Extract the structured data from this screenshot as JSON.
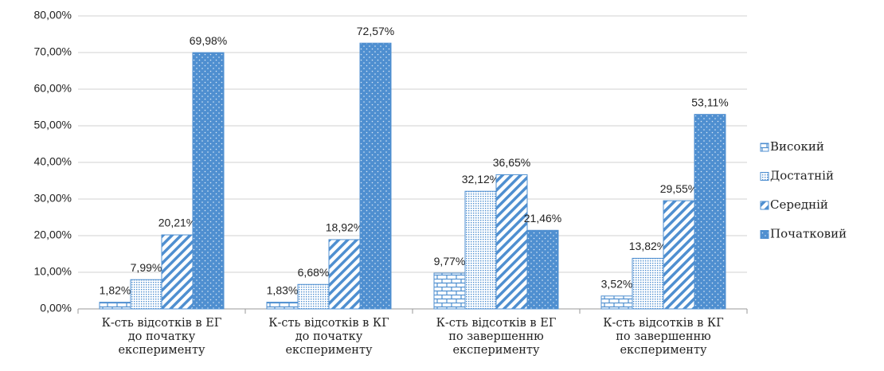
{
  "chart_data": {
    "type": "bar",
    "categories": [
      "К-сть відсотків в ЕГ\nдо початку\nексперименту",
      "К-сть відсотків в КГ\nдо початку\nексперименту",
      "К-сть відсотків в ЕГ\nпо завершенню\nексперименту",
      "К-сть відсотків в КГ\nпо завершенню\nексперименту"
    ],
    "series": [
      {
        "name": "Високий",
        "color": "#4f8fd0",
        "fill_pattern": "bricks",
        "values": [
          1.82,
          1.83,
          9.77,
          3.52
        ],
        "value_labels": [
          "1,82%",
          "1,83%",
          "9,77%",
          "3,52%"
        ]
      },
      {
        "name": "Достатній",
        "color": "#4f8fd0",
        "fill_pattern": "fine-dots",
        "values": [
          7.99,
          6.68,
          32.12,
          13.82
        ],
        "value_labels": [
          "7,99%",
          "6,68%",
          "32,12%",
          "13,82%"
        ]
      },
      {
        "name": "Середній",
        "color": "#4f8fd0",
        "fill_pattern": "diagonal",
        "values": [
          20.21,
          18.92,
          36.65,
          29.55
        ],
        "value_labels": [
          "20,21%",
          "18,92%",
          "36,65%",
          "29,55%"
        ]
      },
      {
        "name": "Початковий",
        "color": "#4f8fd0",
        "fill_pattern": "solid-dots",
        "values": [
          69.98,
          72.57,
          21.46,
          53.11
        ],
        "value_labels": [
          "69,98%",
          "72,57%",
          "21,46%",
          "53,11%"
        ]
      }
    ],
    "ylim": [
      0,
      80
    ],
    "yticks": [
      {
        "value": 0,
        "label": "0,00%"
      },
      {
        "value": 10,
        "label": "10,00%"
      },
      {
        "value": 20,
        "label": "20,00%"
      },
      {
        "value": 30,
        "label": "30,00%"
      },
      {
        "value": 40,
        "label": "40,00%"
      },
      {
        "value": 50,
        "label": "50,00%"
      },
      {
        "value": 60,
        "label": "60,00%"
      },
      {
        "value": 70,
        "label": "70,00%"
      },
      {
        "value": 80,
        "label": "80,00%"
      }
    ],
    "grid": true,
    "legend": "right"
  }
}
